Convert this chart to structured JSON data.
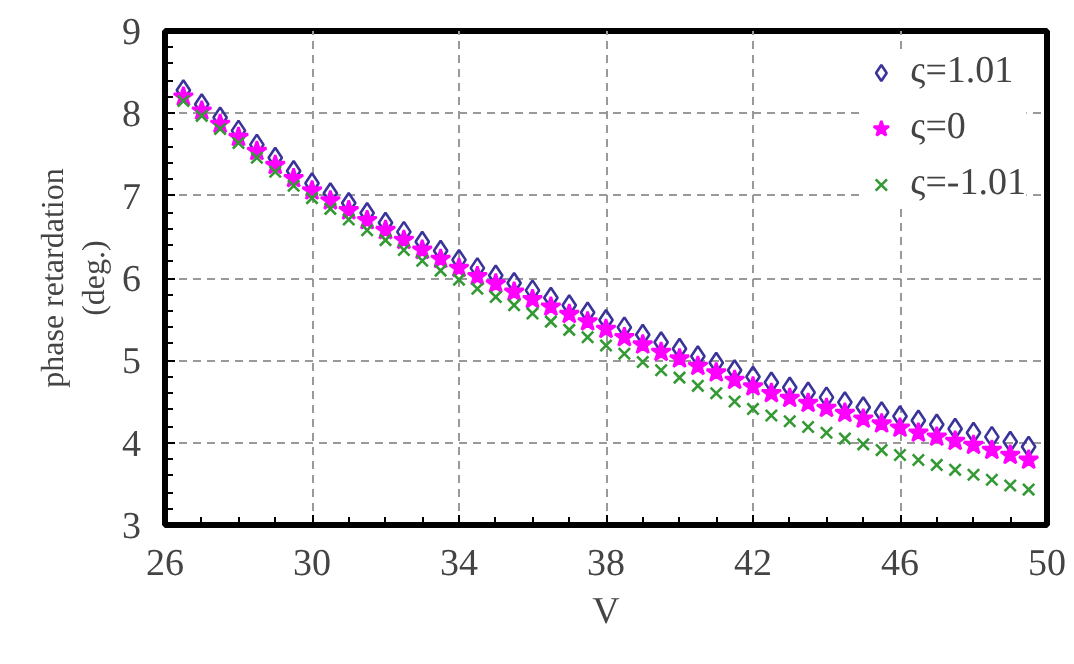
{
  "chart_data": {
    "type": "scatter",
    "xlabel": "V",
    "ylabel": "phase retardation\n(deg.)",
    "x": [
      26.5,
      27,
      27.5,
      28,
      28.5,
      29,
      29.5,
      30,
      30.5,
      31,
      31.5,
      32,
      32.5,
      33,
      33.5,
      34,
      34.5,
      35,
      35.5,
      36,
      36.5,
      37,
      37.5,
      38,
      38.5,
      39,
      39.5,
      40,
      40.5,
      41,
      41.5,
      42,
      42.5,
      43,
      43.5,
      44,
      44.5,
      45,
      45.5,
      46,
      46.5,
      47,
      47.5,
      48,
      48.5,
      49,
      49.5
    ],
    "series": [
      {
        "name": "ς=1.01",
        "color": "#3a3399",
        "marker": "diamond",
        "values": [
          8.28,
          8.11,
          7.95,
          7.79,
          7.62,
          7.46,
          7.3,
          7.15,
          7.03,
          6.91,
          6.79,
          6.67,
          6.56,
          6.44,
          6.33,
          6.22,
          6.12,
          6.03,
          5.94,
          5.85,
          5.76,
          5.67,
          5.58,
          5.49,
          5.4,
          5.31,
          5.22,
          5.14,
          5.05,
          4.97,
          4.88,
          4.8,
          4.73,
          4.67,
          4.61,
          4.55,
          4.49,
          4.43,
          4.37,
          4.32,
          4.27,
          4.22,
          4.17,
          4.12,
          4.07,
          4.01,
          3.95
        ]
      },
      {
        "name": "ς=0",
        "color": "#ff00ff",
        "marker": "star",
        "values": [
          8.2,
          8.03,
          7.87,
          7.71,
          7.54,
          7.37,
          7.21,
          7.06,
          6.94,
          6.82,
          6.7,
          6.58,
          6.46,
          6.34,
          6.23,
          6.12,
          6.02,
          5.93,
          5.83,
          5.74,
          5.65,
          5.56,
          5.47,
          5.38,
          5.28,
          5.19,
          5.1,
          5.02,
          4.93,
          4.85,
          4.76,
          4.68,
          4.6,
          4.54,
          4.48,
          4.42,
          4.36,
          4.29,
          4.23,
          4.18,
          4.12,
          4.07,
          4.02,
          3.97,
          3.91,
          3.85,
          3.79
        ]
      },
      {
        "name": "ς=-1.01",
        "color": "#339933",
        "marker": "cross",
        "values": [
          8.15,
          7.97,
          7.81,
          7.64,
          7.46,
          7.29,
          7.12,
          6.97,
          6.84,
          6.71,
          6.58,
          6.46,
          6.34,
          6.21,
          6.09,
          5.98,
          5.87,
          5.77,
          5.67,
          5.57,
          5.47,
          5.37,
          5.28,
          5.18,
          5.08,
          4.98,
          4.88,
          4.79,
          4.69,
          4.6,
          4.5,
          4.41,
          4.33,
          4.26,
          4.19,
          4.12,
          4.05,
          3.98,
          3.91,
          3.85,
          3.79,
          3.73,
          3.67,
          3.61,
          3.55,
          3.48,
          3.43
        ]
      }
    ],
    "xlim": [
      26,
      50
    ],
    "xticks": [
      26,
      30,
      34,
      38,
      42,
      46,
      50
    ],
    "ylim": [
      3,
      9
    ],
    "yticks": [
      3,
      4,
      5,
      6,
      7,
      8,
      9
    ],
    "grid": true,
    "legend": "top right"
  }
}
